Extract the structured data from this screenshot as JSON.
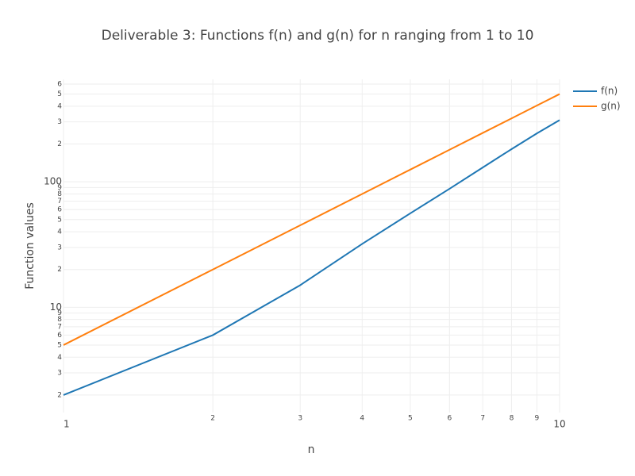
{
  "chart_data": {
    "type": "line",
    "title": "Deliverable 3: Functions f(n) and g(n) for n ranging from 1 to 10",
    "x_label": "n",
    "y_label": "Function values",
    "x": [
      1,
      2,
      3,
      4,
      5,
      6,
      7,
      8,
      9,
      10
    ],
    "series": [
      {
        "name": "f(n)",
        "color": "#1f77b4",
        "values": [
          2,
          6,
          15,
          32,
          56,
          88,
          130,
          182,
          243,
          310
        ]
      },
      {
        "name": "g(n)",
        "color": "#ff7f0e",
        "values": [
          5,
          20,
          45,
          80,
          125,
          180,
          245,
          320,
          405,
          500
        ]
      }
    ],
    "xlog": true,
    "ylog": true,
    "grid": true,
    "legend": "top-right",
    "xlim": [
      1,
      10
    ],
    "ylim": [
      1.45,
      655
    ],
    "xticks": [
      1,
      2,
      3,
      4,
      5,
      6,
      7,
      8,
      9,
      10
    ],
    "yticks": [
      2,
      3,
      4,
      5,
      6,
      7,
      8,
      9,
      10,
      {
        "value": 20,
        "label": "2"
      },
      {
        "value": 30,
        "label": "3"
      },
      {
        "value": 40,
        "label": "4"
      },
      {
        "value": 50,
        "label": "5"
      },
      {
        "value": 60,
        "label": "6"
      },
      {
        "value": 70,
        "label": "7"
      },
      {
        "value": 80,
        "label": "8"
      },
      {
        "value": 90,
        "label": "9"
      },
      100,
      {
        "value": 200,
        "label": "2"
      },
      {
        "value": 300,
        "label": "3"
      },
      {
        "value": 400,
        "label": "4"
      },
      {
        "value": 500,
        "label": "5"
      },
      {
        "value": 600,
        "label": "6"
      }
    ]
  }
}
